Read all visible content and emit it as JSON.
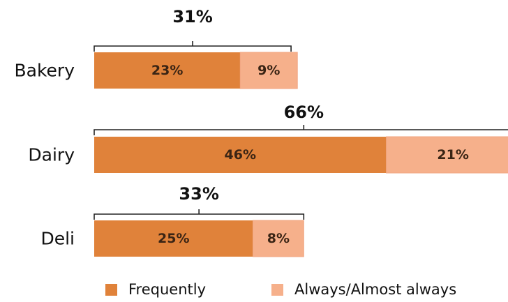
{
  "chart_data": {
    "type": "bar",
    "orientation": "horizontal",
    "stacked": true,
    "categories": [
      "Bakery",
      "Dairy",
      "Deli"
    ],
    "series": [
      {
        "name": "Frequently",
        "values": [
          23,
          46,
          25
        ],
        "labels": [
          "23%",
          "46%",
          "25%"
        ]
      },
      {
        "name": "Always/Almost always",
        "values": [
          9,
          21,
          8
        ],
        "labels": [
          "9%",
          "21%",
          "8%"
        ]
      }
    ],
    "totals": [
      "31%",
      "66%",
      "33%"
    ],
    "total_values": [
      31,
      66,
      33
    ],
    "colors": [
      "#e0823a",
      "#f6b08b"
    ],
    "legend_position": "bottom",
    "grid": false
  }
}
